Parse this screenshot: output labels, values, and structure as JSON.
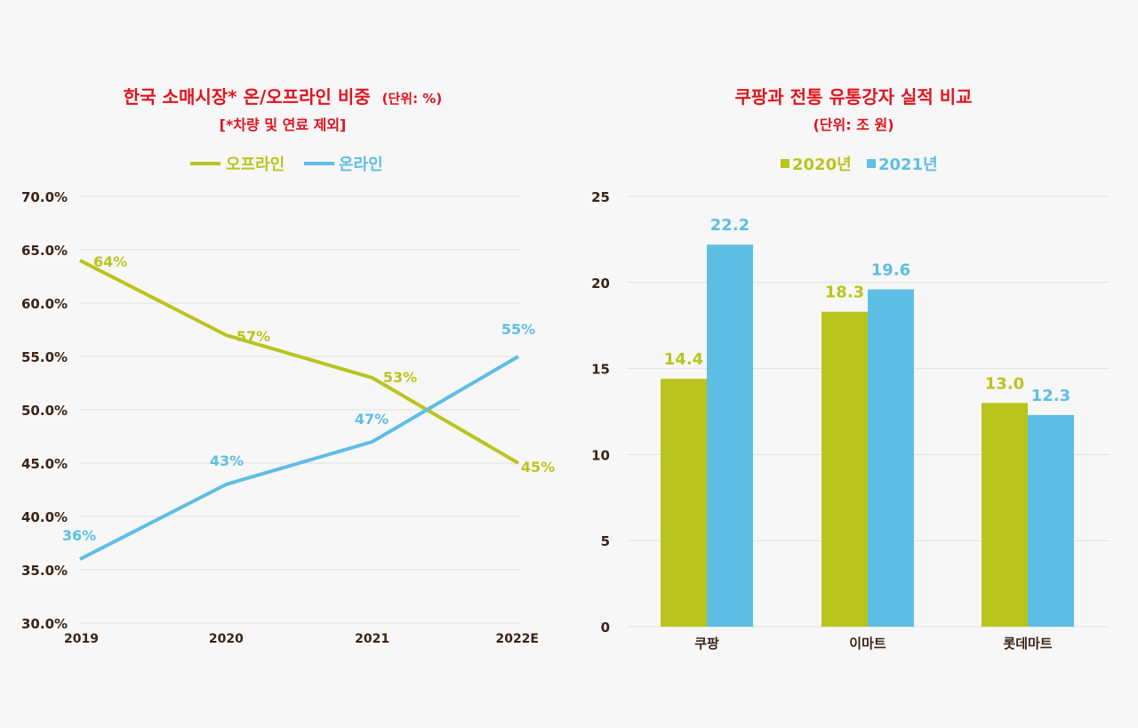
{
  "chart_data": [
    {
      "type": "line",
      "title": "한국 소매시장* 온/오프라인 비중",
      "title_unit": "(단위: %)",
      "subtitle": "[*차량 및 연료 제외]",
      "categories": [
        "2019",
        "2020",
        "2021",
        "2022E"
      ],
      "y_tick_labels": [
        "30.0%",
        "35.0%",
        "40.0%",
        "45.0%",
        "50.0%",
        "55.0%",
        "60.0%",
        "65.0%",
        "70.0%"
      ],
      "ylim": [
        30,
        70
      ],
      "ytick_step": 5,
      "grid": true,
      "legend_position": "top",
      "series": [
        {
          "name": "오프라인",
          "color": "#b9c41e",
          "values": [
            64,
            57,
            53,
            45
          ],
          "labels": [
            "64%",
            "57%",
            "53%",
            "45%"
          ]
        },
        {
          "name": "온라인",
          "color": "#5ebee4",
          "values": [
            36,
            43,
            47,
            55
          ],
          "labels": [
            "36%",
            "43%",
            "47%",
            "55%"
          ]
        }
      ]
    },
    {
      "type": "bar",
      "title": "쿠팡과 전통 유통강자 실적 비교",
      "subtitle": "(단위: 조 원)",
      "categories": [
        "쿠팡",
        "이마트",
        "롯데마트"
      ],
      "y_tick_labels": [
        "0",
        "5",
        "10",
        "15",
        "20",
        "25"
      ],
      "ylim": [
        0,
        25
      ],
      "ytick_step": 5,
      "grid": true,
      "legend_position": "top",
      "series": [
        {
          "name": "2020년",
          "color": "#b9c41e",
          "values": [
            14.4,
            18.3,
            13.0
          ],
          "labels": [
            "14.4",
            "18.3",
            "13.0"
          ]
        },
        {
          "name": "2021년",
          "color": "#5ebee4",
          "values": [
            22.2,
            19.6,
            12.3
          ],
          "labels": [
            "22.2",
            "19.6",
            "12.3"
          ]
        }
      ]
    }
  ]
}
